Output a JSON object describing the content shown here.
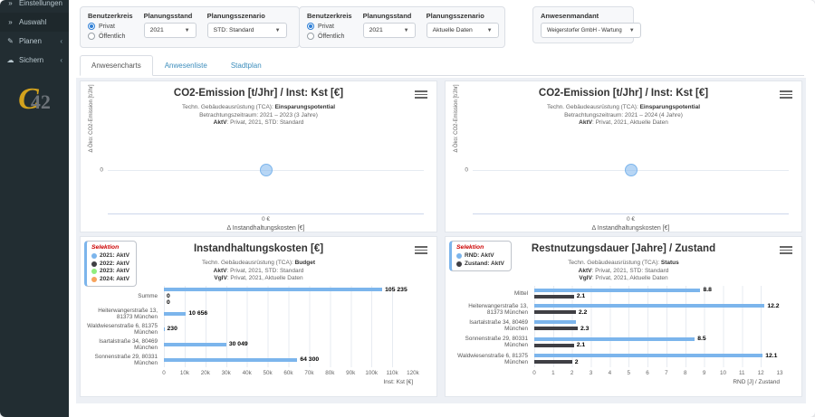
{
  "app": {
    "logo_c": "C",
    "logo_num": "42"
  },
  "sidebar": {
    "items": [
      {
        "label": "Einstellungen",
        "icon": "double-chevron-icon",
        "glyph": "»"
      },
      {
        "label": "Auswahl",
        "icon": "double-chevron-icon",
        "glyph": "»"
      },
      {
        "label": "Planen",
        "icon": "pencil-icon",
        "glyph": "✎",
        "chevron": "‹"
      },
      {
        "label": "Sichern",
        "icon": "cloud-icon",
        "glyph": "☁",
        "chevron": "‹"
      }
    ]
  },
  "filters": {
    "panel1": {
      "benutzerkreis_label": "Benutzerkreis",
      "option1": "Privat",
      "option2": "Öffentlich",
      "selected": "Privat",
      "planungsstand_label": "Planungsstand",
      "planungsstand_value": "2021",
      "planungsszenario_label": "Planungsszenario",
      "planungsszenario_value": "STD: Standard"
    },
    "panel2": {
      "benutzerkreis_label": "Benutzerkreis",
      "option1": "Privat",
      "option2": "Öffentlich",
      "selected": "Privat",
      "planungsstand_label": "Planungsstand",
      "planungsstand_value": "2021",
      "planungsszenario_label": "Planungsszenario",
      "planungsszenario_value": "Aktuelle Daten"
    },
    "mandant": {
      "label": "Anwesenmandant",
      "value": "Weigerstorfer GmbH - Wartung"
    }
  },
  "tabs": {
    "tab1": "Anwesencharts",
    "tab2": "Anwesenliste",
    "tab3": "Stadtplan",
    "active": "Anwesencharts"
  },
  "colors": {
    "accent_blue": "#7cb5ec",
    "series_dark": "#3f3f44",
    "series_green": "#90ed7d",
    "series_orange": "#f7a35c",
    "legend_title_red": "#cc0000",
    "sidebar_bg": "#222d32",
    "content_bg": "#edf0f5"
  },
  "chart_data": [
    {
      "type": "scatter",
      "title": "CO2-Emission [t/Jhr] / Inst: Kst [€]",
      "subtitle_lines": [
        [
          {
            "t": "Techn. Gebäudeausrüstung (TCA): "
          },
          {
            "t": "Einsparungspotential",
            "b": true
          }
        ],
        [
          {
            "t": "Betrachtungszeitraum: 2021 – 2023 (3 Jahre)"
          }
        ],
        [
          {
            "t": "AktV",
            "b": true
          },
          {
            "t": ": Privat, 2021, STD: Standard"
          }
        ]
      ],
      "xlabel": "Δ Instandhaltungskosten [€]",
      "ylabel": "Δ Öko: CO2-Emission [t/Jhr]",
      "x_ticks": [
        "0 €"
      ],
      "y_ticks": [
        "0"
      ],
      "points": [
        {
          "x": 0,
          "y": 0
        }
      ],
      "point_fill": "rgba(124,181,236,0.55)",
      "point_border": "#7cb5ec"
    },
    {
      "type": "scatter",
      "title": "CO2-Emission [t/Jhr] / Inst: Kst [€]",
      "subtitle_lines": [
        [
          {
            "t": "Techn. Gebäudeausrüstung (TCA): "
          },
          {
            "t": "Einsparungspotential",
            "b": true
          }
        ],
        [
          {
            "t": "Betrachtungszeitraum: 2021 – 2024 (4 Jahre)"
          }
        ],
        [
          {
            "t": "AktV",
            "b": true
          },
          {
            "t": ": Privat, 2021, Aktuelle Daten"
          }
        ]
      ],
      "xlabel": "Δ Instandhaltungskosten [€]",
      "ylabel": "Δ Öko: CO2-Emission [t/Jhr]",
      "x_ticks": [
        "0 €"
      ],
      "y_ticks": [
        "0"
      ],
      "points": [
        {
          "x": 0,
          "y": 0
        }
      ],
      "point_fill": "rgba(124,181,236,0.55)",
      "point_border": "#7cb5ec"
    },
    {
      "type": "bar",
      "title": "Instandhaltungskosten [€]",
      "subtitle_lines": [
        [
          {
            "t": "Techn. Gebäudeausrüstung (TCA): "
          },
          {
            "t": "Budget",
            "b": true
          }
        ],
        [
          {
            "t": "AktV",
            "b": true
          },
          {
            "t": ": Privat, 2021, STD: Standard"
          }
        ],
        [
          {
            "t": "VglV",
            "b": true
          },
          {
            "t": ": Privat, 2021, Aktuelle Daten"
          }
        ]
      ],
      "legend": {
        "title": "Selektion",
        "items": [
          {
            "label": "2021: AktV",
            "color": "#7cb5ec"
          },
          {
            "label": "2022: AktV",
            "color": "#3f3f44"
          },
          {
            "label": "2023: AktV",
            "color": "#90ed7d"
          },
          {
            "label": "2024: AktV",
            "color": "#f7a35c"
          }
        ]
      },
      "rows": [
        {
          "category": "Summe",
          "bars": [
            {
              "value": 105235,
              "label": "105 235",
              "color": "#7cb5ec"
            },
            {
              "value": 0,
              "label": "0",
              "color": "#3f3f44"
            },
            {
              "value": 0,
              "label": "0",
              "color": "#90ed7d"
            }
          ]
        },
        {
          "category": "Heiterwangerstraße 13, 81373 München",
          "bars": [
            {
              "value": 10656,
              "label": "10 656",
              "color": "#7cb5ec"
            }
          ]
        },
        {
          "category": "Waldwiesenstraße 6, 81375 München",
          "bars": [
            {
              "value": 230,
              "label": "230",
              "color": "#7cb5ec"
            }
          ]
        },
        {
          "category": "Isartalstraße 34, 80469 München",
          "bars": [
            {
              "value": 30049,
              "label": "30 049",
              "color": "#7cb5ec"
            }
          ]
        },
        {
          "category": "Sonnenstraße 29, 80331 München",
          "bars": [
            {
              "value": 64300,
              "label": "64 300",
              "color": "#7cb5ec"
            }
          ]
        }
      ],
      "xmax": 120000,
      "x_ticks": [
        "0",
        "10k",
        "20k",
        "30k",
        "40k",
        "50k",
        "60k",
        "70k",
        "80k",
        "90k",
        "100k",
        "110k",
        "120k"
      ],
      "xlabel": "Inst: Kst [€]"
    },
    {
      "type": "bar",
      "title": "Restnutzungsdauer [Jahre] / Zustand",
      "subtitle_lines": [
        [
          {
            "t": "Techn. Gebäudeausrüstung (TCA): "
          },
          {
            "t": "Status",
            "b": true
          }
        ],
        [
          {
            "t": "AktV",
            "b": true
          },
          {
            "t": ": Privat, 2021, STD: Standard"
          }
        ],
        [
          {
            "t": "VglV",
            "b": true
          },
          {
            "t": ": Privat, 2021, Aktuelle Daten"
          }
        ]
      ],
      "legend": {
        "title": "Selektion",
        "items": [
          {
            "label": "RND: AktV",
            "color": "#7cb5ec"
          },
          {
            "label": "Zustand: AktV",
            "color": "#3f3f44"
          }
        ]
      },
      "rows": [
        {
          "category": "Mittel",
          "bars": [
            {
              "value": 8.8,
              "label": "8.8",
              "color": "#7cb5ec"
            },
            {
              "value": 2.1,
              "label": "2.1",
              "color": "#3f3f44"
            }
          ]
        },
        {
          "category": "Heiterwangerstraße 13, 81373 München",
          "bars": [
            {
              "value": 12.2,
              "label": "12.2",
              "color": "#7cb5ec"
            },
            {
              "value": 2.2,
              "label": "2.2",
              "color": "#3f3f44"
            }
          ]
        },
        {
          "category": "Isartalstraße 34, 80469 München",
          "bars": [
            {
              "value": 2.2,
              "label": "",
              "color": "#7cb5ec"
            },
            {
              "value": 2.3,
              "label": "2.3",
              "color": "#3f3f44"
            }
          ]
        },
        {
          "category": "Sonnenstraße 29, 80331 München",
          "bars": [
            {
              "value": 8.5,
              "label": "8.5",
              "color": "#7cb5ec"
            },
            {
              "value": 2.1,
              "label": "2.1",
              "color": "#3f3f44"
            }
          ]
        },
        {
          "category": "Waldwiesenstraße 6, 81375 München",
          "bars": [
            {
              "value": 12.1,
              "label": "12.1",
              "color": "#7cb5ec"
            },
            {
              "value": 2,
              "label": "2",
              "color": "#3f3f44"
            }
          ]
        }
      ],
      "xmax": 13,
      "x_ticks": [
        "0",
        "1",
        "2",
        "3",
        "4",
        "5",
        "6",
        "7",
        "8",
        "9",
        "10",
        "11",
        "12",
        "13"
      ],
      "xlabel": "RND [J] / Zustand"
    }
  ]
}
